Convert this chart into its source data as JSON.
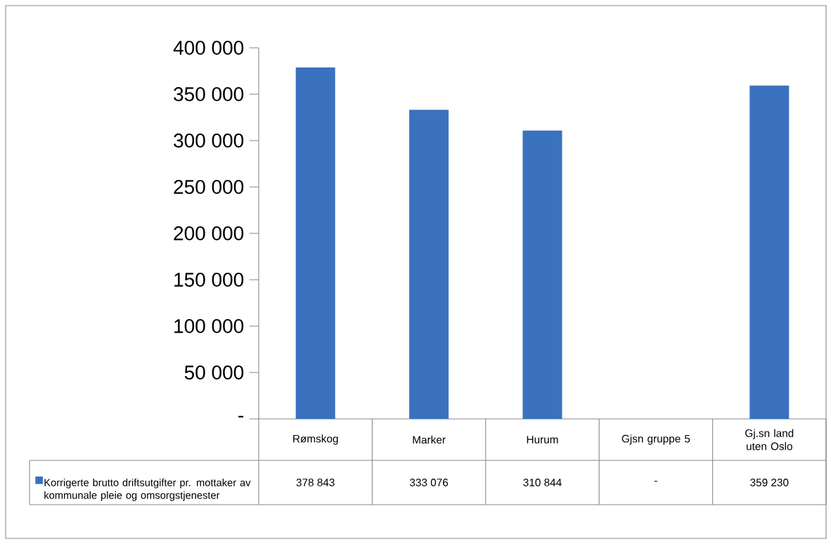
{
  "chart_data": {
    "type": "bar",
    "categories": [
      "Rømskog",
      "Marker",
      "Hurum",
      "Gjsn gruppe 5",
      "Gj.sn land uten Oslo"
    ],
    "series": [
      {
        "name": "Korrigerte brutto driftsutgifter pr. mottaker av kommunale pleie og omsorgstjenester",
        "color": "#3a72c0",
        "values": [
          378843,
          333076,
          310844,
          null,
          359230
        ],
        "value_labels": [
          "378 843",
          "333 076",
          "310 844",
          "-",
          "359 230"
        ]
      }
    ],
    "ylim": [
      0,
      400000
    ],
    "yticks": [
      {
        "value": 0,
        "label": "-"
      },
      {
        "value": 50000,
        "label": "50 000"
      },
      {
        "value": 100000,
        "label": "100 000"
      },
      {
        "value": 150000,
        "label": "150 000"
      },
      {
        "value": 200000,
        "label": "200 000"
      },
      {
        "value": 250000,
        "label": "250 000"
      },
      {
        "value": 300000,
        "label": "300 000"
      },
      {
        "value": 350000,
        "label": "350 000"
      },
      {
        "value": 400000,
        "label": "400 000"
      }
    ],
    "legend": "bottom left"
  }
}
